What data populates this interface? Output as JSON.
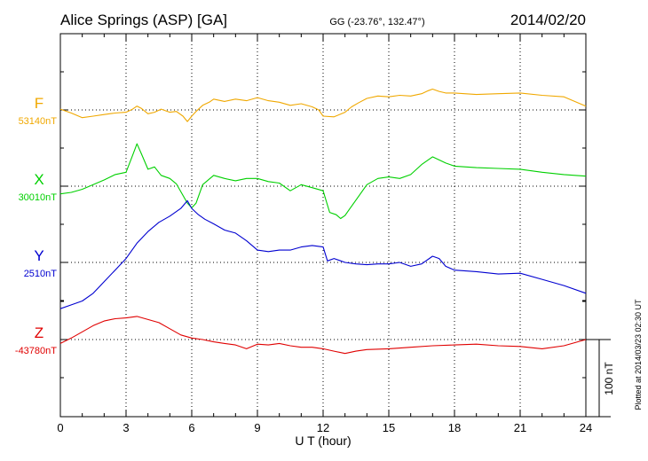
{
  "header": {
    "station": "Alice Springs (ASP)  [GA]",
    "coords": "GG (-23.76°, 132.47°)",
    "date": "2014/02/20"
  },
  "footer_note": "Plotted at 2014/03/23 02:30 UT",
  "scale_bar_label": "100 nT",
  "colors": {
    "F": "#f0a800",
    "X": "#00d000",
    "Y": "#0000d0",
    "Z": "#e00000",
    "grid": "#000000"
  },
  "chart_data": {
    "type": "line",
    "xlabel": "U T (hour)",
    "xlim": [
      0,
      24
    ],
    "xticks": [
      "0",
      "3",
      "6",
      "9",
      "12",
      "15",
      "18",
      "21",
      "24"
    ],
    "scale_bar_nT": 100,
    "series": [
      {
        "name": "F",
        "baseline_label": "53140nT",
        "baseline_nT": 53140,
        "x": [
          0,
          0.5,
          1,
          1.5,
          2,
          2.5,
          3,
          3.3,
          3.5,
          3.7,
          4,
          4.3,
          4.6,
          5,
          5.3,
          5.6,
          5.8,
          6,
          6.2,
          6.5,
          6.8,
          7,
          7.5,
          8,
          8.5,
          9,
          9.5,
          10,
          10.5,
          11,
          11.5,
          11.8,
          12,
          12.5,
          13,
          13.3,
          13.6,
          14,
          14.5,
          15,
          15.5,
          16,
          16.5,
          16.8,
          17,
          17.3,
          17.6,
          18,
          19,
          20,
          21,
          22,
          23,
          24
        ],
        "values": [
          1,
          -4,
          -10,
          -8,
          -6,
          -4,
          -3,
          1,
          5,
          2,
          -5,
          -3,
          1,
          -3,
          -2,
          -8,
          -15,
          -8,
          -2,
          6,
          10,
          14,
          11,
          14,
          12,
          16,
          12,
          10,
          6,
          8,
          4,
          0,
          -8,
          -9,
          -3,
          4,
          9,
          15,
          18,
          17,
          19,
          18,
          21,
          25,
          27,
          24,
          22,
          22,
          20,
          21,
          22,
          19,
          17,
          5
        ]
      },
      {
        "name": "X",
        "baseline_label": "30010nT",
        "baseline_nT": 30010,
        "x": [
          0,
          0.5,
          1,
          1.5,
          2,
          2.5,
          3,
          3.3,
          3.5,
          3.7,
          4,
          4.3,
          4.6,
          5,
          5.3,
          5.6,
          5.8,
          6,
          6.2,
          6.5,
          7,
          7.5,
          8,
          8.5,
          9,
          9.5,
          10,
          10.5,
          11,
          11.5,
          12,
          12.3,
          12.6,
          12.8,
          13,
          13.2,
          13.5,
          14,
          14.5,
          15,
          15.5,
          16,
          16.5,
          17,
          17.3,
          17.6,
          18,
          19,
          20,
          21,
          22,
          23,
          24
        ],
        "values": [
          -10,
          -8,
          -4,
          2,
          8,
          15,
          18,
          40,
          55,
          42,
          22,
          25,
          14,
          10,
          3,
          -12,
          -22,
          -28,
          -22,
          2,
          14,
          10,
          7,
          10,
          10,
          6,
          4,
          -6,
          2,
          -2,
          -6,
          -34,
          -37,
          -42,
          -38,
          -30,
          -18,
          2,
          10,
          12,
          10,
          15,
          28,
          38,
          34,
          30,
          26,
          24,
          23,
          22,
          18,
          15,
          13
        ]
      },
      {
        "name": "Y",
        "baseline_label": "2510nT",
        "baseline_nT": 2510,
        "x": [
          0,
          0.5,
          1,
          1.5,
          2,
          2.5,
          3,
          3.5,
          4,
          4.5,
          5,
          5.5,
          5.8,
          6,
          6.3,
          6.6,
          7,
          7.5,
          8,
          8.5,
          9,
          9.5,
          10,
          10.5,
          11,
          11.5,
          12,
          12.2,
          12.5,
          13,
          13.5,
          14,
          14.5,
          15,
          15.5,
          16,
          16.5,
          17,
          17.3,
          17.6,
          18,
          19,
          20,
          21,
          22,
          23,
          24
        ],
        "values": [
          -60,
          -55,
          -50,
          -40,
          -25,
          -10,
          5,
          25,
          40,
          52,
          60,
          70,
          80,
          70,
          62,
          56,
          50,
          42,
          38,
          28,
          16,
          14,
          16,
          16,
          20,
          22,
          20,
          2,
          5,
          0,
          -2,
          -3,
          -2,
          -2,
          0,
          -5,
          -2,
          8,
          5,
          -5,
          -10,
          -12,
          -15,
          -14,
          -22,
          -30,
          -40
        ]
      },
      {
        "name": "Z",
        "baseline_label": "-43780nT",
        "baseline_nT": -43780,
        "x": [
          0,
          0.5,
          1,
          1.5,
          2,
          2.5,
          3,
          3.5,
          4,
          4.5,
          5,
          5.5,
          6,
          6.5,
          7,
          7.5,
          8,
          8.5,
          9,
          9.5,
          10,
          10.5,
          11,
          11.5,
          12,
          12.5,
          13,
          13.5,
          14,
          15,
          16,
          17,
          18,
          19,
          20,
          21,
          22,
          23,
          24
        ],
        "values": [
          -5,
          2,
          10,
          18,
          24,
          27,
          28,
          30,
          26,
          22,
          14,
          6,
          2,
          0,
          -3,
          -5,
          -7,
          -12,
          -6,
          -7,
          -5,
          -8,
          -10,
          -10,
          -12,
          -15,
          -18,
          -15,
          -13,
          -12,
          -10,
          -8,
          -7,
          -6,
          -8,
          -9,
          -12,
          -8,
          0
        ]
      }
    ]
  }
}
